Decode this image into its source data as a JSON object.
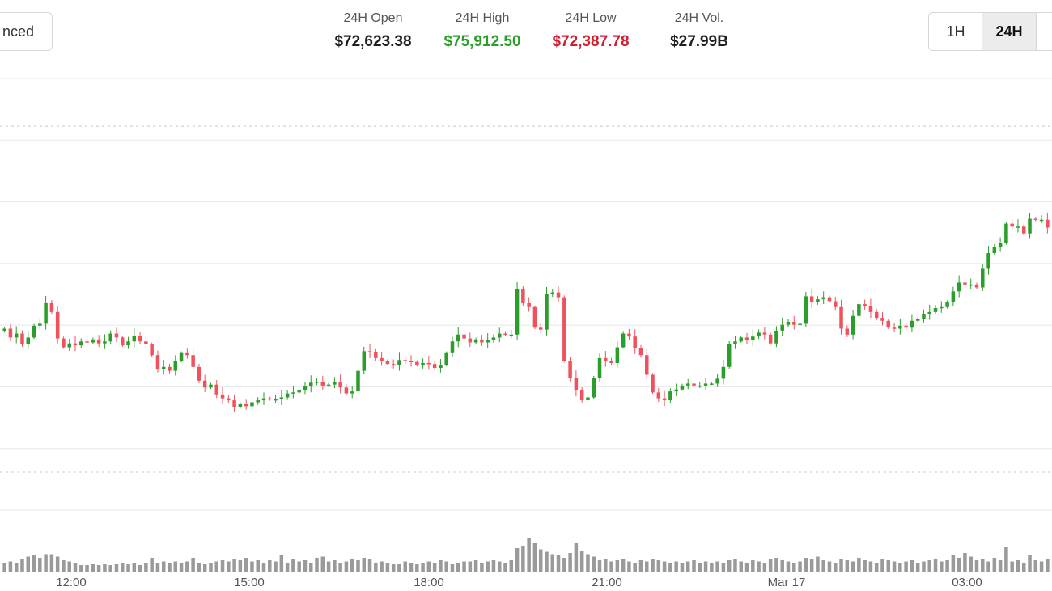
{
  "toolbar": {
    "advanced_label": "nced",
    "ranges": [
      "1H",
      "24H",
      ""
    ],
    "active_range": "24H"
  },
  "stats": [
    {
      "label": "24H Open",
      "value": "$72,623.38",
      "tone": "neutral"
    },
    {
      "label": "24H High",
      "value": "$75,912.50",
      "tone": "up"
    },
    {
      "label": "24H Low",
      "value": "$72,387.78",
      "tone": "down"
    },
    {
      "label": "24H Vol.",
      "value": "$27.99B",
      "tone": "neutral"
    }
  ],
  "colors": {
    "up": "#2a9d2a",
    "down": "#f0525d",
    "grid": "#e8e8e8",
    "volume": "#9a9a9a",
    "dotted": "#c8c8c8"
  },
  "chart_data": {
    "type": "candlestick",
    "x_ticks": [
      "12:00",
      "15:00",
      "18:00",
      "21:00",
      "Mar 17",
      "03:00"
    ],
    "high_marker": 75912.5,
    "low_marker": 72387.78,
    "ylim": [
      72000,
      76400
    ],
    "grid": true,
    "closes": [
      73850,
      73760,
      73800,
      73690,
      73760,
      73880,
      73900,
      74110,
      74020,
      73750,
      73660,
      73700,
      73680,
      73720,
      73710,
      73740,
      73700,
      73720,
      73800,
      73760,
      73680,
      73720,
      73780,
      73720,
      73690,
      73580,
      73440,
      73460,
      73420,
      73520,
      73600,
      73580,
      73460,
      73320,
      73250,
      73280,
      73180,
      73140,
      73120,
      73050,
      73080,
      73060,
      73100,
      73120,
      73140,
      73130,
      73130,
      73150,
      73190,
      73200,
      73220,
      73260,
      73300,
      73310,
      73270,
      73280,
      73310,
      73250,
      73190,
      73210,
      73420,
      73620,
      73610,
      73550,
      73520,
      73490,
      73480,
      73530,
      73520,
      73510,
      73480,
      73500,
      73490,
      73450,
      73480,
      73600,
      73720,
      73790,
      73750,
      73710,
      73740,
      73710,
      73730,
      73760,
      73800,
      73790,
      73790,
      74250,
      74110,
      74070,
      73860,
      73840,
      74200,
      74220,
      74170,
      73520,
      73350,
      73220,
      73120,
      73150,
      73350,
      73550,
      73520,
      73500,
      73660,
      73800,
      73770,
      73650,
      73580,
      73380,
      73200,
      73140,
      73120,
      73210,
      73230,
      73270,
      73290,
      73270,
      73270,
      73290,
      73290,
      73340,
      73460,
      73690,
      73720,
      73760,
      73730,
      73770,
      73810,
      73790,
      73700,
      73830,
      73890,
      73920,
      73890,
      73900,
      74180,
      74120,
      74150,
      74170,
      74130,
      74070,
      73850,
      73790,
      73980,
      74100,
      74080,
      74020,
      73960,
      73930,
      73860,
      73850,
      73880,
      73860,
      73930,
      73950,
      74000,
      74020,
      74060,
      74070,
      74120,
      74230,
      74320,
      74300,
      74300,
      74270,
      74460,
      74620,
      74680,
      74720,
      74920,
      74890,
      74890,
      74820,
      74970,
      74960,
      74960,
      74880
    ],
    "volumes": [
      8,
      9,
      8,
      11,
      13,
      14,
      12,
      15,
      15,
      13,
      10,
      9,
      8,
      6,
      6,
      7,
      6,
      7,
      6,
      7,
      8,
      7,
      8,
      6,
      8,
      12,
      8,
      9,
      8,
      9,
      8,
      9,
      12,
      8,
      7,
      8,
      9,
      10,
      9,
      11,
      10,
      12,
      9,
      10,
      8,
      10,
      9,
      14,
      8,
      11,
      9,
      10,
      8,
      12,
      13,
      9,
      10,
      8,
      9,
      11,
      10,
      12,
      11,
      8,
      9,
      8,
      7,
      7,
      9,
      8,
      7,
      8,
      9,
      8,
      10,
      9,
      7,
      8,
      9,
      9,
      10,
      8,
      9,
      10,
      9,
      8,
      10,
      20,
      22,
      28,
      24,
      19,
      17,
      15,
      14,
      12,
      16,
      24,
      18,
      15,
      13,
      10,
      11,
      9,
      10,
      11,
      9,
      8,
      10,
      9,
      11,
      10,
      9,
      8,
      9,
      8,
      9,
      10,
      8,
      9,
      8,
      9,
      8,
      10,
      11,
      9,
      8,
      10,
      9,
      8,
      11,
      12,
      10,
      9,
      8,
      9,
      12,
      11,
      13,
      10,
      9,
      8,
      11,
      10,
      9,
      12,
      10,
      9,
      8,
      11,
      10,
      9,
      8,
      9,
      10,
      8,
      9,
      10,
      11,
      9,
      10,
      14,
      12,
      16,
      13,
      10,
      11,
      9,
      12,
      10,
      21,
      9,
      10,
      8,
      14,
      10,
      9,
      11
    ],
    "volume_max": 40
  }
}
